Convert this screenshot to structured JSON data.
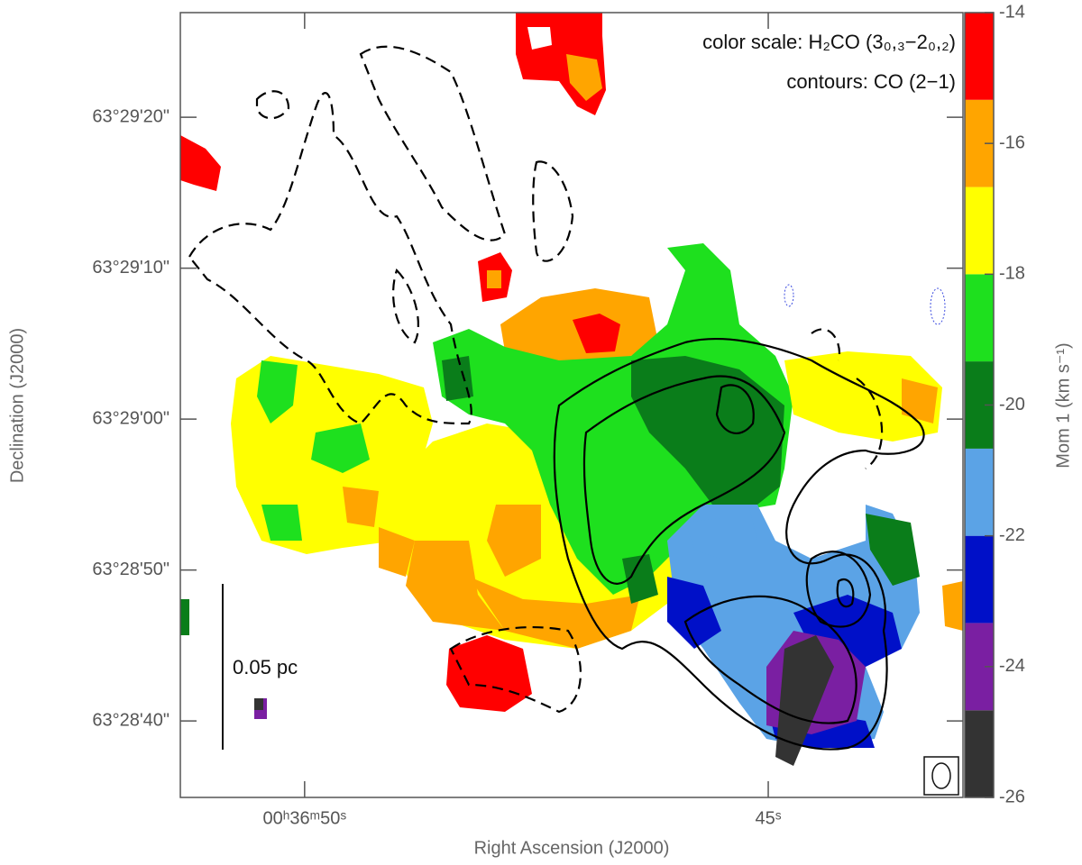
{
  "chart_data": {
    "type": "image",
    "legend_lines": [
      "color scale: H₂CO (3₀,₃−2₀,₂)",
      "contours: CO (2−1)"
    ],
    "x_label": "Right Ascension (J2000)",
    "y_label": "Declination (J2000)",
    "xlim": [
      9.213917,
      9.17875
    ],
    "xticks": [
      {
        "value": 9.208333,
        "label": "00ʰ36ᵐ50ˢ"
      },
      {
        "value": 9.1875,
        "label": "45ˢ"
      }
    ],
    "ylim": [
      63.47637,
      63.490814
    ],
    "yticks": [
      {
        "value": 63.488889,
        "label": "63°29'20\""
      },
      {
        "value": 63.486111,
        "label": "63°29'10\""
      },
      {
        "value": 63.483333,
        "label": "63°29'00\""
      },
      {
        "value": 63.480556,
        "label": "63°28'50\""
      },
      {
        "value": 63.477778,
        "label": "63°28'40\""
      }
    ],
    "scale_bar_label": "0.05 pc",
    "colorbar": {
      "label": "Mom 1 (km s⁻¹)",
      "lim": [
        -26,
        -14
      ],
      "ticks": [
        -14,
        -16,
        -18,
        -20,
        -22,
        -24,
        -26
      ],
      "bins": [
        -26,
        -24.667,
        -23.333,
        -22,
        -20.667,
        -19.333,
        -18,
        -16.667,
        -15.333,
        -14
      ],
      "colors": [
        "#333333",
        "#7a1fa2",
        "#0010c8",
        "#5ba3e6",
        "#0a7d1a",
        "#1ee01e",
        "#ffff00",
        "#ffa500",
        "#ff0000"
      ]
    }
  }
}
